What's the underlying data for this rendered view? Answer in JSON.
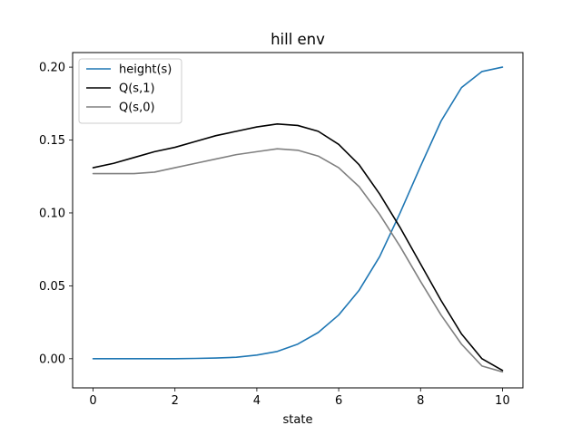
{
  "chart_data": {
    "type": "line",
    "title": "hill env",
    "xlabel": "state",
    "ylabel": "",
    "xlim": [
      -0.5,
      10.5
    ],
    "ylim": [
      -0.02,
      0.21
    ],
    "xticks": [
      "0",
      "2",
      "4",
      "6",
      "8",
      "10"
    ],
    "yticks": [
      "0.00",
      "0.05",
      "0.10",
      "0.15",
      "0.20"
    ],
    "grid": false,
    "legend_position": "top-left",
    "x": [
      0,
      0.5,
      1,
      1.5,
      2,
      2.5,
      3,
      3.5,
      4,
      4.5,
      5,
      5.5,
      6,
      6.5,
      7,
      7.5,
      8,
      8.5,
      9,
      9.5,
      10
    ],
    "series": [
      {
        "name": "height(s)",
        "color": "#1f77b4",
        "values": [
          0.0,
          0.0,
          0.0,
          0.0,
          0.0,
          0.0002,
          0.0005,
          0.001,
          0.0025,
          0.005,
          0.01,
          0.018,
          0.03,
          0.047,
          0.07,
          0.1,
          0.132,
          0.163,
          0.186,
          0.197,
          0.2
        ]
      },
      {
        "name": "Q(s,1)",
        "color": "#000000",
        "values": [
          0.131,
          0.134,
          0.138,
          0.142,
          0.145,
          0.149,
          0.153,
          0.156,
          0.159,
          0.161,
          0.16,
          0.156,
          0.147,
          0.133,
          0.113,
          0.09,
          0.065,
          0.04,
          0.017,
          0.0,
          -0.008
        ]
      },
      {
        "name": "Q(s,0)",
        "color": "#808080",
        "values": [
          0.127,
          0.127,
          0.127,
          0.128,
          0.131,
          0.134,
          0.137,
          0.14,
          0.142,
          0.144,
          0.143,
          0.139,
          0.131,
          0.118,
          0.099,
          0.077,
          0.053,
          0.03,
          0.01,
          -0.005,
          -0.009
        ]
      }
    ]
  }
}
